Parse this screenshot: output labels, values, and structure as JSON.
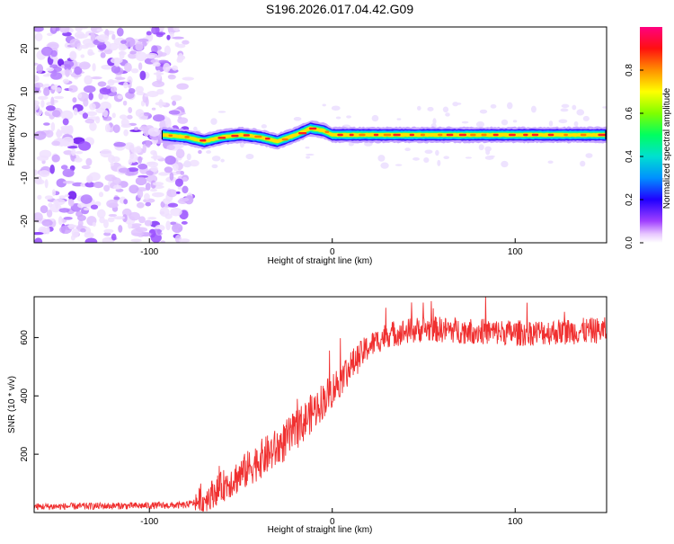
{
  "title": "S196.2026.017.04.42.G09",
  "chart_data": [
    {
      "type": "heatmap",
      "xlabel": "Height of straight line (km)",
      "ylabel": "Frequency (Hz)",
      "xlim": [
        -163,
        150
      ],
      "ylim": [
        -25,
        25
      ],
      "xticks": [
        -100,
        0,
        100
      ],
      "yticks": [
        -20,
        -10,
        0,
        10,
        20
      ],
      "colorbar": {
        "label": "Normalized spectral amplitude",
        "range": [
          0,
          1
        ],
        "ticks": [
          0.0,
          0.2,
          0.4,
          0.6,
          0.8
        ],
        "tick_labels": [
          "0.0",
          "0.2",
          "0.4",
          "0.6",
          "0.8"
        ],
        "colors": [
          "#ffffff",
          "#e0b0ff",
          "#8a00ff",
          "#0000ff",
          "#00c8ff",
          "#00ff80",
          "#80ff00",
          "#ffff00",
          "#ff8000",
          "#ff0000",
          "#ff0080"
        ]
      },
      "noise_region": {
        "x": [
          -163,
          -80
        ],
        "amplitude": 0.3
      },
      "ridge": {
        "x_start": -93,
        "x_end": 150,
        "amplitude": 0.9,
        "frequency_track": [
          {
            "x": -93,
            "f": 0
          },
          {
            "x": -80,
            "f": -0.5
          },
          {
            "x": -70,
            "f": -1.5
          },
          {
            "x": -60,
            "f": -0.5
          },
          {
            "x": -50,
            "f": 0
          },
          {
            "x": -40,
            "f": -0.5
          },
          {
            "x": -30,
            "f": -1.5
          },
          {
            "x": -20,
            "f": 0
          },
          {
            "x": -12,
            "f": 1.5
          },
          {
            "x": -5,
            "f": 1
          },
          {
            "x": 0,
            "f": 0
          },
          {
            "x": 50,
            "f": 0
          },
          {
            "x": 150,
            "f": 0
          }
        ]
      }
    },
    {
      "type": "line",
      "xlabel": "Height of straight line (km)",
      "ylabel": "SNR (10 * v/v)",
      "xlim": [
        -163,
        150
      ],
      "ylim": [
        0,
        740
      ],
      "xticks": [
        -100,
        0,
        100
      ],
      "yticks": [
        200,
        400,
        600
      ],
      "series": [
        {
          "name": "SNR",
          "color": "#f03030",
          "trend": [
            {
              "x": -163,
              "y": 20
            },
            {
              "x": -80,
              "y": 25
            },
            {
              "x": -70,
              "y": 45
            },
            {
              "x": -60,
              "y": 90
            },
            {
              "x": -50,
              "y": 130
            },
            {
              "x": -40,
              "y": 180
            },
            {
              "x": -30,
              "y": 220
            },
            {
              "x": -20,
              "y": 280
            },
            {
              "x": -10,
              "y": 350
            },
            {
              "x": 0,
              "y": 420
            },
            {
              "x": 10,
              "y": 500
            },
            {
              "x": 20,
              "y": 570
            },
            {
              "x": 30,
              "y": 610
            },
            {
              "x": 50,
              "y": 630
            },
            {
              "x": 100,
              "y": 615
            },
            {
              "x": 150,
              "y": 625
            }
          ],
          "noise_amplitude": {
            "low": 12,
            "rising": 70,
            "plateau": 45
          }
        }
      ]
    }
  ]
}
